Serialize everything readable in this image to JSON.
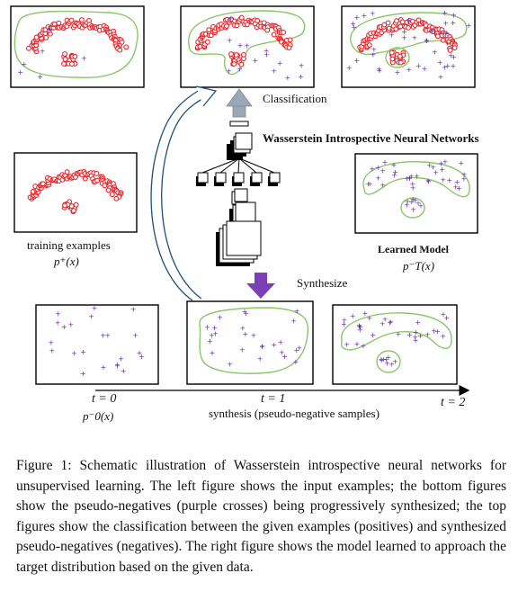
{
  "diagram": {
    "top_label": "Classification",
    "network_title": "Wasserstein Introspective Neural Networks",
    "training_label": "training examples",
    "training_math": "p⁺(x)",
    "learned_label": "Learned Model",
    "learned_math": "p⁻T(x)",
    "synthesize_label": "Synthesize",
    "t0": "t = 0",
    "t0_math": "p⁻0(x)",
    "t1": "t = 1",
    "t1_sub": "synthesis (pseudo-negative samples)",
    "t2": "t = 2"
  },
  "caption": {
    "text": "Figure 1: Schematic illustration of Wasserstein introspective neural networks for unsupervised learning. The left figure shows the input examples; the bottom figures show the pseudo-negatives (purple crosses) being progressively synthesized; the top figures show the classification between the given examples (positives) and synthesized pseudo-negatives (negatives). The right figure shows the model learned to approach the target distribution based on the given data."
  },
  "colors": {
    "positive": "#e8262b",
    "negative": "#5b2ca0",
    "boundary": "#8cc66b",
    "arrow_up": "#9aa7b6",
    "arrow_down": "#7b3fb8",
    "curve_arrow": "#1f4e79"
  }
}
